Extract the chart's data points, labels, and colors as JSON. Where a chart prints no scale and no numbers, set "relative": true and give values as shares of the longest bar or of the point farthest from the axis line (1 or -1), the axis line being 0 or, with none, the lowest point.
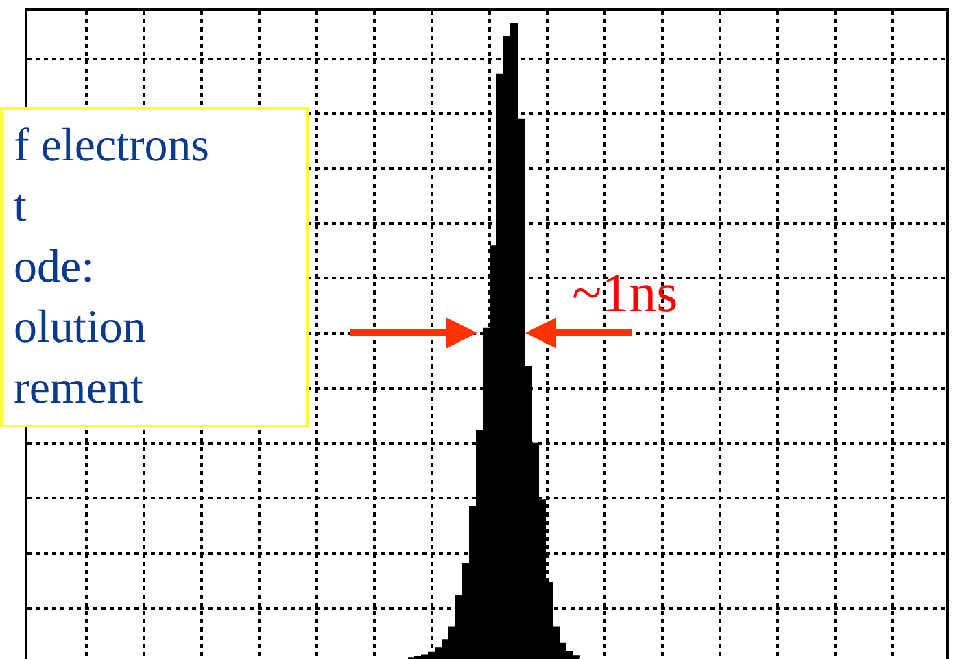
{
  "chart_data": {
    "type": "area",
    "relative": true,
    "tick_labels": false,
    "grid": true,
    "color": "#000000",
    "categories": [
      null,
      null,
      null,
      null,
      null,
      null,
      null,
      null,
      null,
      null,
      null,
      null,
      null,
      null,
      null,
      null,
      null,
      null,
      null,
      null,
      null,
      null,
      null,
      null,
      null,
      null
    ],
    "values": [
      0.002,
      0.004,
      0.006,
      0.01,
      0.017,
      0.03,
      0.05,
      0.1,
      0.15,
      0.24,
      0.36,
      0.52,
      0.65,
      0.92,
      0.98,
      1,
      0.85,
      0.46,
      0.34,
      0.25,
      0.12,
      0.05,
      0.025,
      0.012,
      0.005,
      0.002
    ],
    "annotations": [
      "f electrons\nt\node:\nolution\nrement",
      "~1ns"
    ]
  }
}
